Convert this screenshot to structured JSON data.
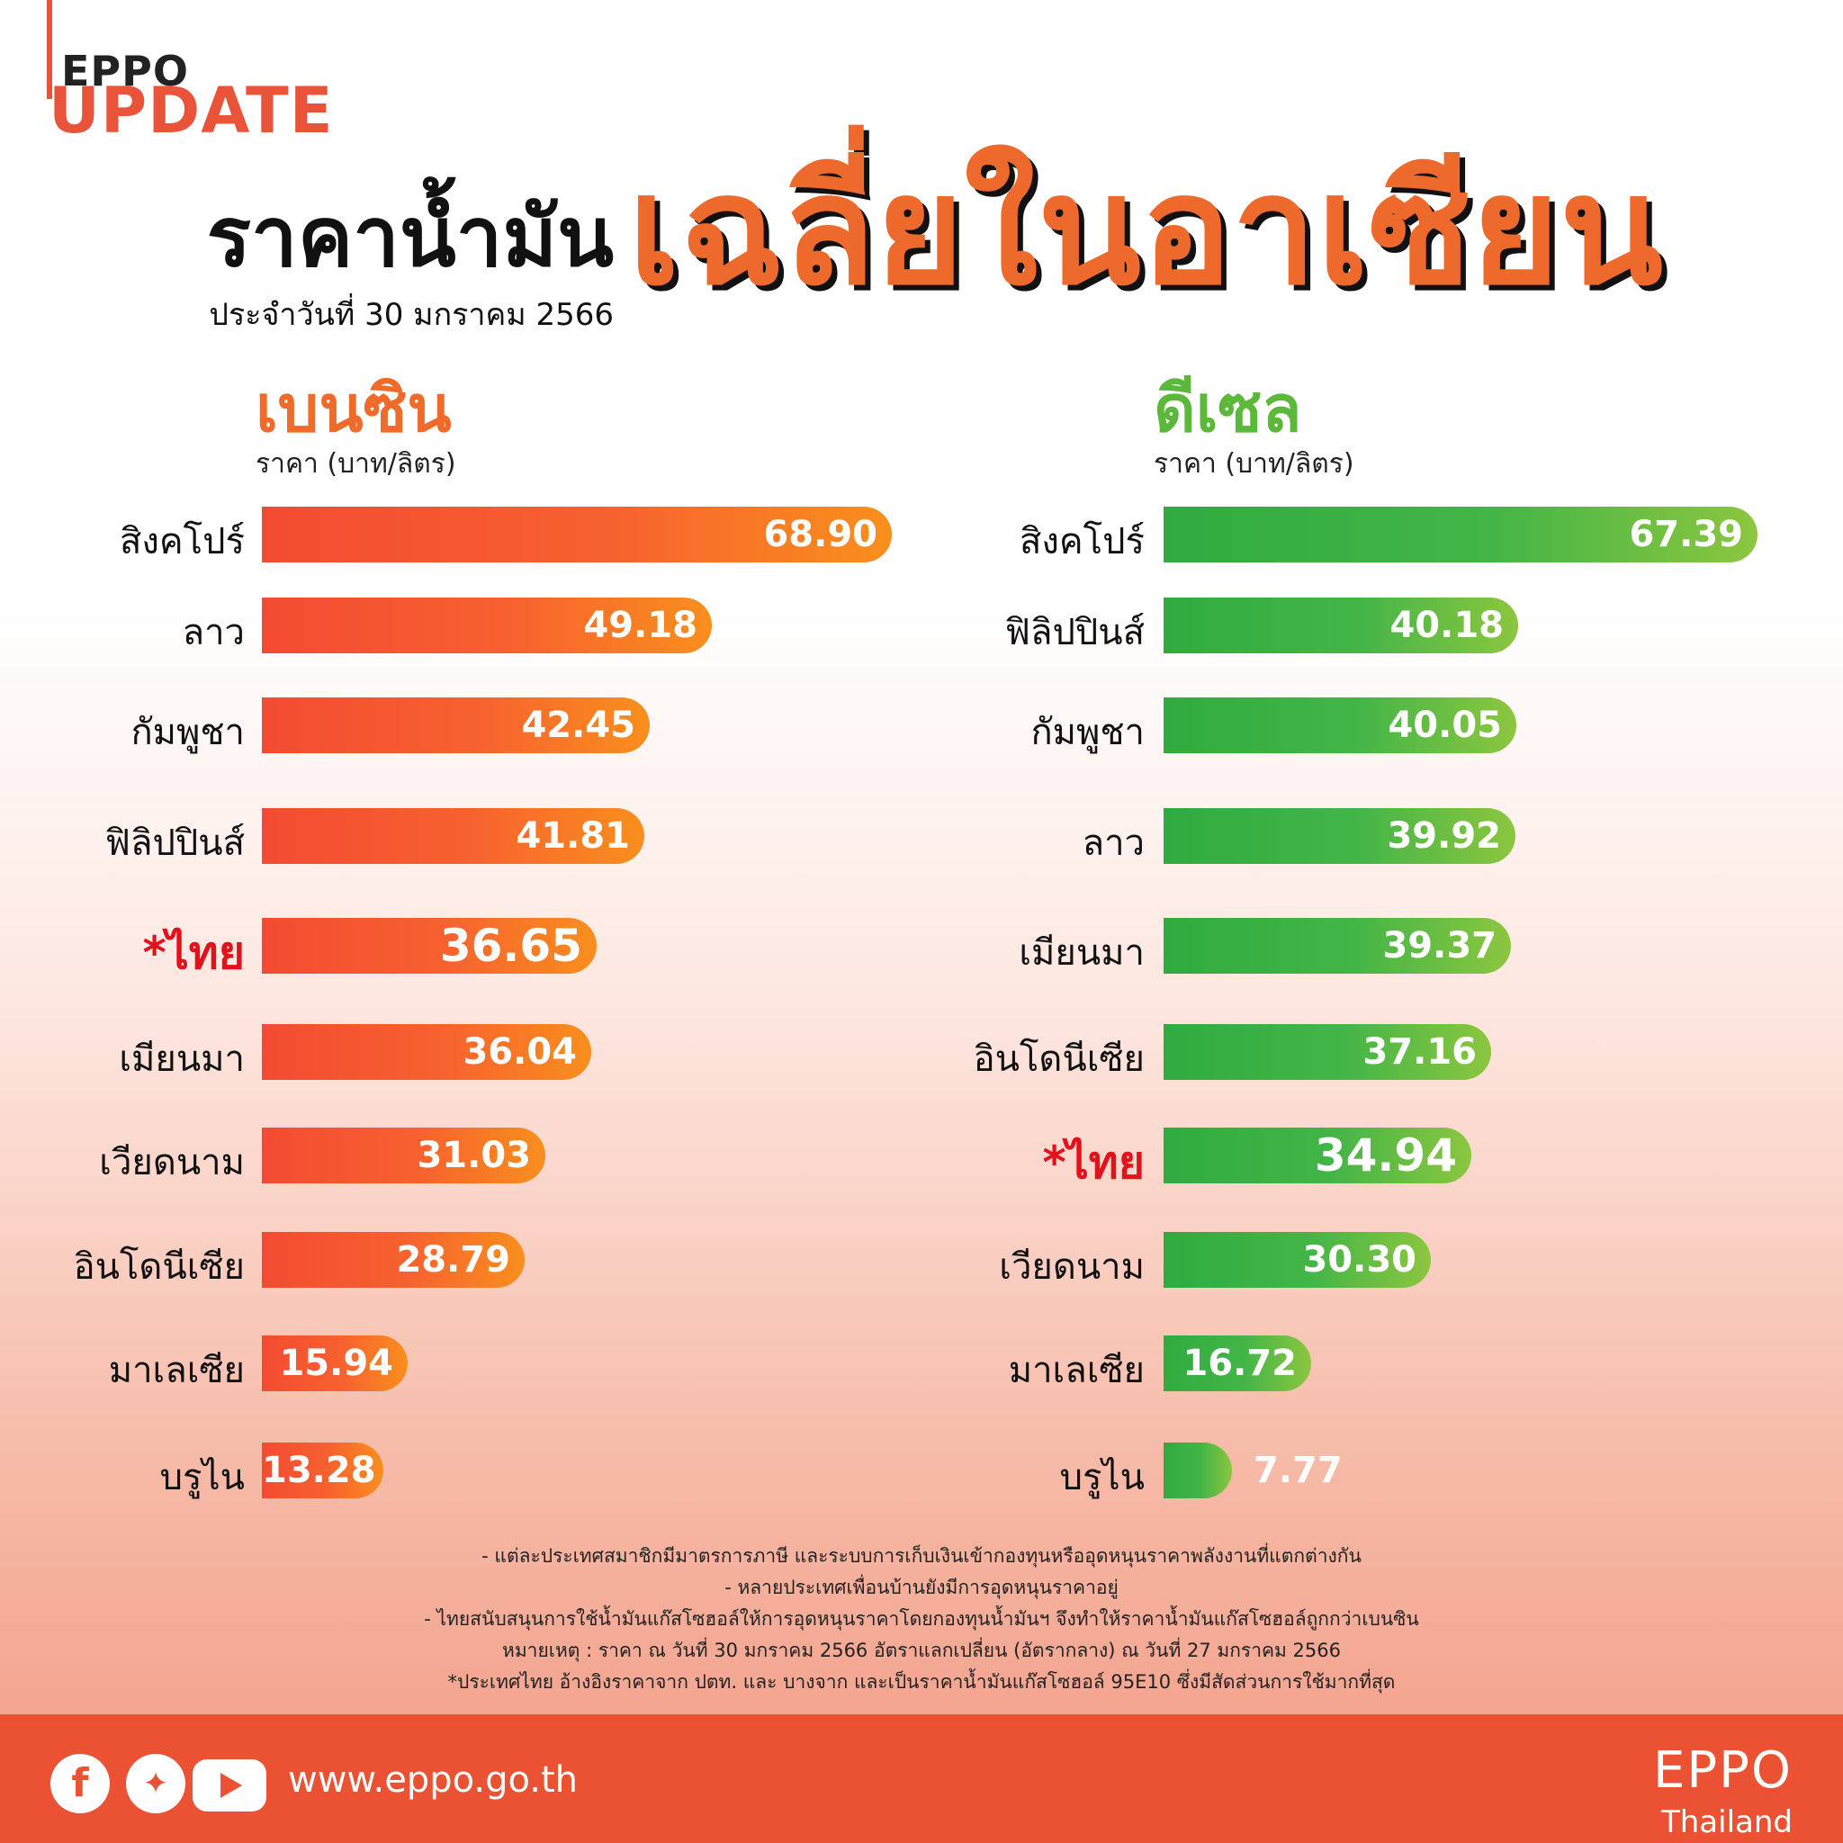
{
  "brand": {
    "top": "EPPO",
    "bottom": "UPDATE"
  },
  "title": {
    "main": "ราคาน้ำมัน",
    "sub": "ประจำวันที่ 30 มกราคม 2566",
    "highlight": "เฉลี่ยในอาเซียน"
  },
  "chart_data": [
    {
      "type": "bar",
      "orientation": "horizontal",
      "title": "เบนซิน",
      "ylabel": "ราคา (บาท/ลิตร)",
      "color": "#f4582f",
      "categories": [
        "สิงคโปร์",
        "ลาว",
        "กัมพูชา",
        "ฟิลิปปินส์",
        "*ไทย",
        "เมียนมา",
        "เวียดนาม",
        "อินโดนีเซีย",
        "มาเลเซีย",
        "บรูไน"
      ],
      "values": [
        68.9,
        49.18,
        42.45,
        41.81,
        36.65,
        36.04,
        31.03,
        28.79,
        15.94,
        13.28
      ],
      "labels": [
        "68.90",
        "49.18",
        "42.45",
        "41.81",
        "36.65",
        "36.04",
        "31.03",
        "28.79",
        "15.94",
        "13.28"
      ],
      "highlight": "*ไทย"
    },
    {
      "type": "bar",
      "orientation": "horizontal",
      "title": "ดีเซล",
      "ylabel": "ราคา (บาท/ลิตร)",
      "color": "#3bb143",
      "categories": [
        "สิงคโปร์",
        "ฟิลิปปินส์",
        "กัมพูชา",
        "ลาว",
        "เมียนมา",
        "อินโดนีเซีย",
        "*ไทย",
        "เวียดนาม",
        "มาเลเซีย",
        "บรูไน"
      ],
      "values": [
        67.39,
        40.18,
        40.05,
        39.92,
        39.37,
        37.16,
        34.94,
        30.3,
        16.72,
        7.77
      ],
      "labels": [
        "67.39",
        "40.18",
        "40.05",
        "39.92",
        "39.37",
        "37.16",
        "34.94",
        "30.30",
        "16.72",
        "7.77"
      ],
      "highlight": "*ไทย"
    }
  ],
  "notes": [
    "- แต่ละประเทศสมาชิกมีมาตรการภาษี และระบบการเก็บเงินเข้ากองทุนหรืออุดหนุนราคาพลังงานที่แตกต่างกัน",
    "- หลายประเทศเพื่อนบ้านยังมีการอุดหนุนราคาอยู่",
    "- ไทยสนับสนุนการใช้น้ำมันแก๊สโซฮอล์ให้การอุดหนุนราคาโดยกองทุนน้ำมันฯ จึงทำให้ราคาน้ำมันแก๊สโซฮอล์ถูกกว่าเบนซิน",
    "หมายเหตุ :  ราคา ณ วันที่ 30 มกราคม 2566 อัตราแลกเปลี่ยน (อัตรากลาง) ณ วันที่ 27 มกราคม 2566",
    "*ประเทศไทย อ้างอิงราคาจาก ปตท. และ บางจาก และเป็นราคาน้ำมันแก๊สโซฮอล์ 95E10 ซึ่งมีสัดส่วนการใช้มากที่สุด"
  ],
  "footer": {
    "icons": [
      "facebook-icon",
      "twitter-icon",
      "youtube-icon"
    ],
    "url": "www.eppo.go.th",
    "logo_top": "EPPO",
    "logo_bottom": "Thailand"
  }
}
